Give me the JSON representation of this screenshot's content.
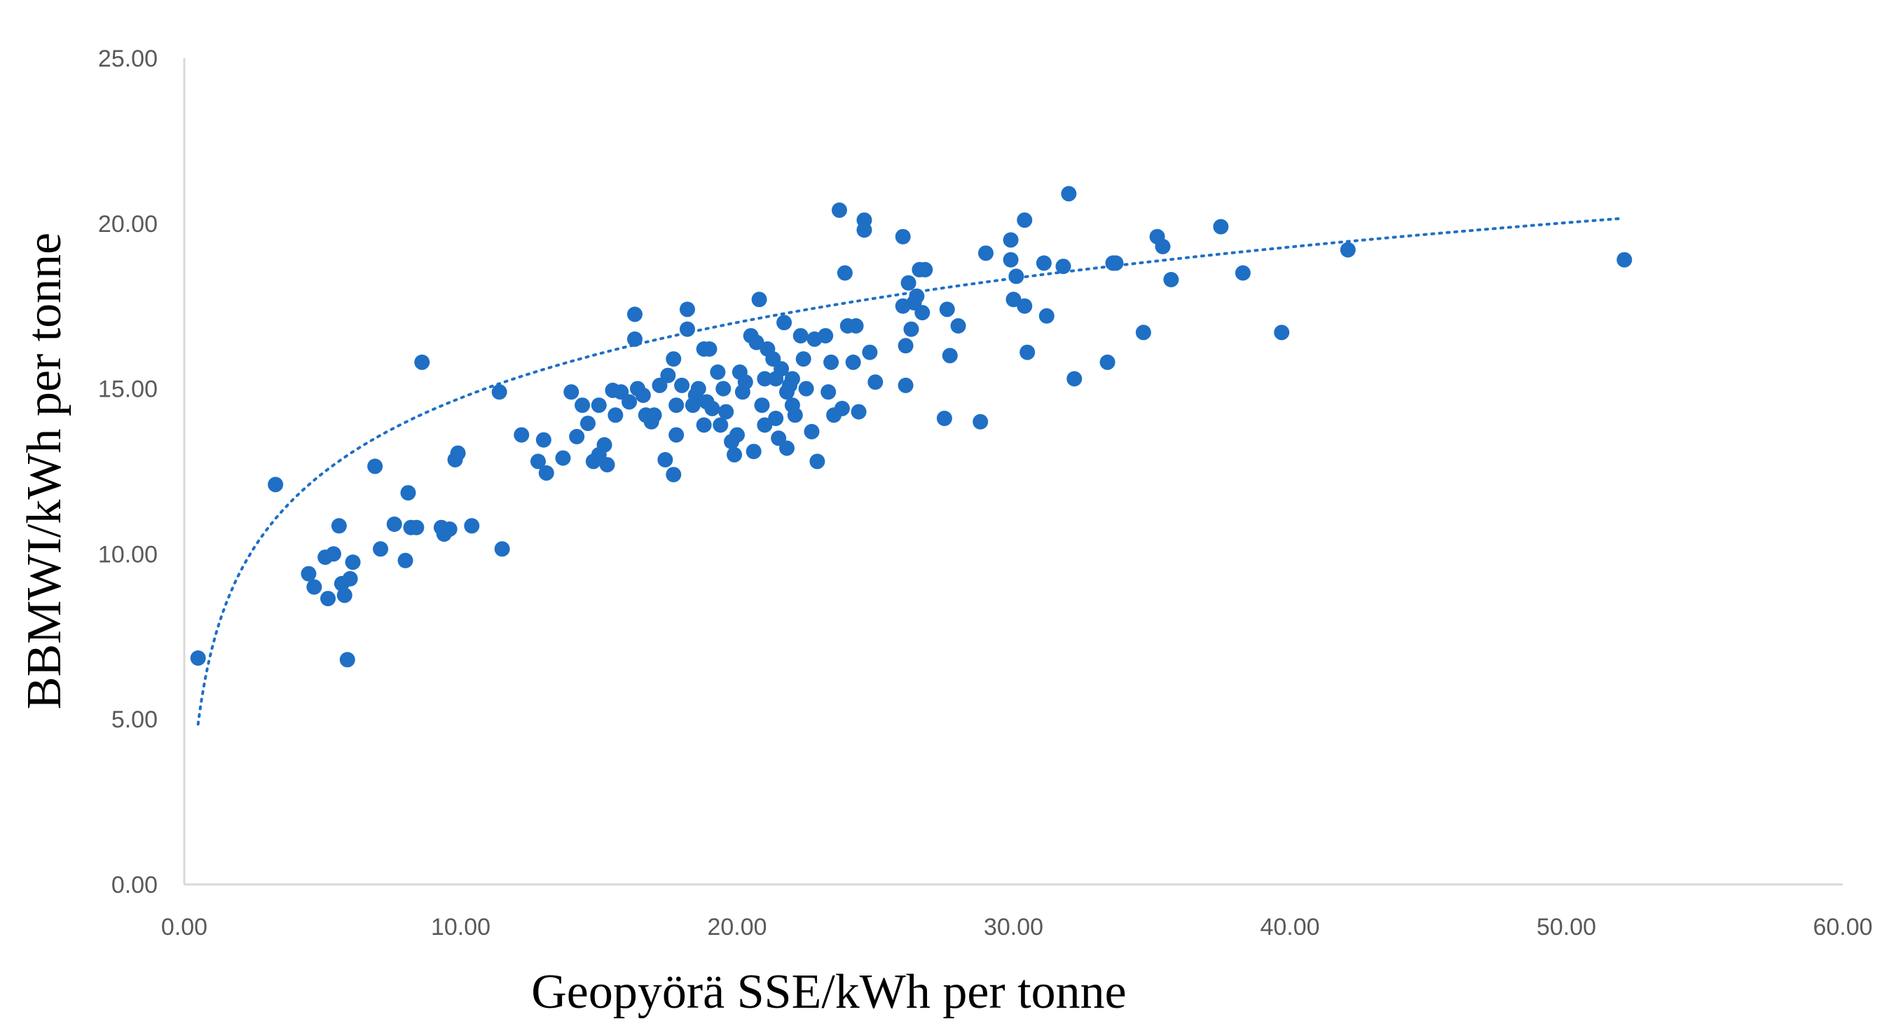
{
  "chart_data": {
    "type": "scatter",
    "xlabel": "Geopyörä SSE/kWh per tonne",
    "ylabel": "BBMWI/kWh per tonne",
    "xlim": [
      0,
      60
    ],
    "ylim": [
      0,
      25
    ],
    "x_ticks": [
      "0.00",
      "10.00",
      "20.00",
      "30.00",
      "40.00",
      "50.00",
      "60.00"
    ],
    "y_ticks": [
      "0.00",
      "5.00",
      "10.00",
      "15.00",
      "20.00",
      "25.00"
    ],
    "grid": false,
    "legend": "none",
    "point_color": "#1f6fc5",
    "trendline": {
      "type": "logarithmic",
      "style": "dotted",
      "x_range": [
        0.5,
        52.0
      ],
      "y_start": 4.85,
      "y_end": 20.15
    },
    "series": [
      {
        "x": [
          0.5,
          3.3,
          4.5,
          4.7,
          5.1,
          5.2,
          5.4,
          5.6,
          5.7,
          5.8,
          5.9,
          6.0,
          6.1,
          6.9,
          7.1,
          7.6,
          8.0,
          8.1,
          8.2,
          8.4,
          8.6,
          9.3,
          9.4,
          9.6,
          9.8,
          9.9,
          10.4,
          11.4,
          11.5,
          12.2,
          12.8,
          13.0,
          13.1,
          13.7,
          14.0,
          14.2,
          14.4,
          14.6,
          14.8,
          15.0,
          15.0,
          15.2,
          15.3,
          15.5,
          15.6,
          15.8,
          16.1,
          16.3,
          16.3,
          16.4,
          16.6,
          16.7,
          16.9,
          17.0,
          17.2,
          17.4,
          17.5,
          17.7,
          17.7,
          17.8,
          17.8,
          18.0,
          18.2,
          18.2,
          18.4,
          18.5,
          18.6,
          18.8,
          18.8,
          18.9,
          19.0,
          19.1,
          19.3,
          19.4,
          19.5,
          19.6,
          19.8,
          19.9,
          20.0,
          20.1,
          20.2,
          20.3,
          20.5,
          20.6,
          20.7,
          20.8,
          20.9,
          21.0,
          21.0,
          21.1,
          21.3,
          21.4,
          21.4,
          21.5,
          21.6,
          21.7,
          21.8,
          21.8,
          21.9,
          22.0,
          22.0,
          22.1,
          22.3,
          22.4,
          22.5,
          22.7,
          22.8,
          22.9,
          23.2,
          23.3,
          23.4,
          23.5,
          23.7,
          23.8,
          23.9,
          24.0,
          24.2,
          24.3,
          24.4,
          24.6,
          24.6,
          24.8,
          25.0,
          26.0,
          26.0,
          26.1,
          26.1,
          26.2,
          26.3,
          26.4,
          26.5,
          26.6,
          26.7,
          26.8,
          27.5,
          27.6,
          27.7,
          28.0,
          28.8,
          29.0,
          29.9,
          29.9,
          30.0,
          30.1,
          30.4,
          30.4,
          30.5,
          31.1,
          31.2,
          31.8,
          32.0,
          32.2,
          33.4,
          33.6,
          33.7,
          34.7,
          35.2,
          35.4,
          35.7,
          37.5,
          38.3,
          39.7,
          42.1,
          52.1
        ],
        "y": [
          6.85,
          12.1,
          9.4,
          9.0,
          9.9,
          8.65,
          10.0,
          10.85,
          9.1,
          8.75,
          6.8,
          9.25,
          9.75,
          12.65,
          10.15,
          10.9,
          9.8,
          11.85,
          10.8,
          10.8,
          15.8,
          10.8,
          10.6,
          10.75,
          12.85,
          13.05,
          10.85,
          14.9,
          10.15,
          13.6,
          12.8,
          13.45,
          12.45,
          12.9,
          14.9,
          13.55,
          14.5,
          13.95,
          12.8,
          14.5,
          13.0,
          13.3,
          12.7,
          14.95,
          14.2,
          14.9,
          14.6,
          16.5,
          17.25,
          15.0,
          14.8,
          14.2,
          14.0,
          14.2,
          15.1,
          12.85,
          15.4,
          12.4,
          15.9,
          13.6,
          14.5,
          15.1,
          16.8,
          17.4,
          14.5,
          14.8,
          15.0,
          16.2,
          13.9,
          14.6,
          16.2,
          14.4,
          15.5,
          13.9,
          15.0,
          14.3,
          13.4,
          13.0,
          13.6,
          15.5,
          14.9,
          15.2,
          16.6,
          13.1,
          16.4,
          17.7,
          14.5,
          15.3,
          13.9,
          16.2,
          15.9,
          15.3,
          14.1,
          13.5,
          15.6,
          17.0,
          14.9,
          13.2,
          15.1,
          14.5,
          15.3,
          14.2,
          16.6,
          15.9,
          15.0,
          13.7,
          16.5,
          12.8,
          16.6,
          14.9,
          15.8,
          14.2,
          20.4,
          14.4,
          18.5,
          16.9,
          15.8,
          16.9,
          14.3,
          20.1,
          19.8,
          16.1,
          15.2,
          19.6,
          17.5,
          16.3,
          15.1,
          18.2,
          16.8,
          17.6,
          17.8,
          18.6,
          17.3,
          18.6,
          14.1,
          17.4,
          16.0,
          16.9,
          14.0,
          19.1,
          19.5,
          18.9,
          17.7,
          18.4,
          17.5,
          20.1,
          16.1,
          18.8,
          17.2,
          18.7,
          20.9,
          15.3,
          15.8,
          18.8,
          18.8,
          16.7,
          19.6,
          19.3,
          18.3,
          19.9,
          18.5,
          16.7,
          19.2,
          18.9
        ]
      }
    ]
  }
}
